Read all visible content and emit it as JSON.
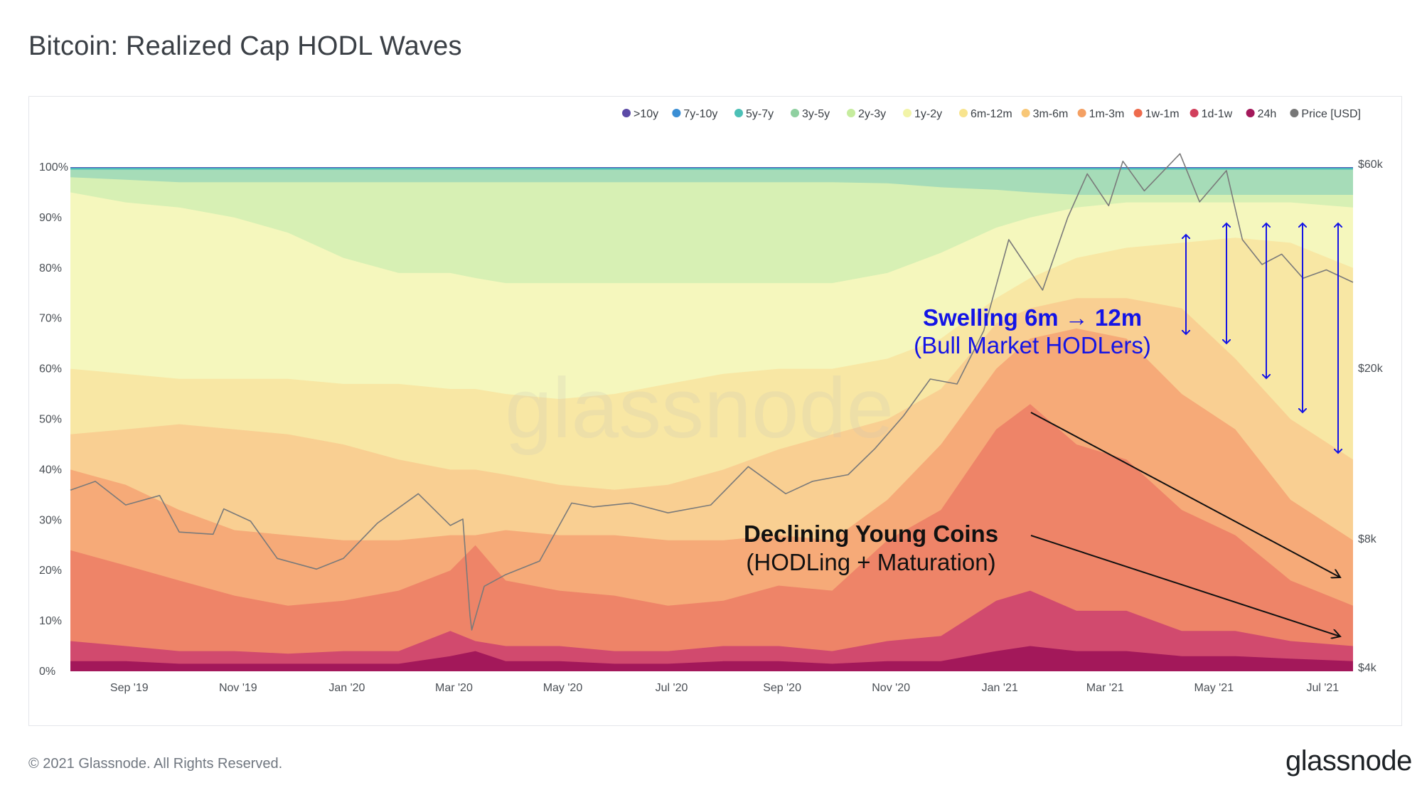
{
  "page": {
    "title": "Bitcoin: Realized Cap HODL Waves",
    "copyright": "© 2021 Glassnode. All Rights Reserved.",
    "brand": "glassnode",
    "watermark": "glassnode"
  },
  "chart_data": {
    "type": "area",
    "title": "Bitcoin: Realized Cap HODL Waves",
    "stacked": true,
    "x_labels": [
      "Sep '19",
      "Nov '19",
      "Jan '20",
      "Mar '20",
      "May '20",
      "Jul '20",
      "Sep '20",
      "Nov '20",
      "Jan '21",
      "Mar '21",
      "May '21",
      "Jul '21"
    ],
    "x_range": [
      "2019-08-01",
      "2021-07-20"
    ],
    "x_dates": [
      "2019-08-01",
      "2019-09-01",
      "2019-10-01",
      "2019-11-01",
      "2019-12-01",
      "2020-01-01",
      "2020-02-01",
      "2020-03-01",
      "2020-03-15",
      "2020-04-01",
      "2020-05-01",
      "2020-06-01",
      "2020-07-01",
      "2020-08-01",
      "2020-09-01",
      "2020-10-01",
      "2020-11-01",
      "2020-12-01",
      "2021-01-01",
      "2021-01-20",
      "2021-02-15",
      "2021-03-15",
      "2021-04-15",
      "2021-05-15",
      "2021-06-15",
      "2021-07-20"
    ],
    "y_left_ticks": [
      "0%",
      "10%",
      "20%",
      "30%",
      "40%",
      "50%",
      "60%",
      "70%",
      "80%",
      "90%",
      "100%"
    ],
    "y_left_range": [
      0,
      100
    ],
    "y_right_ticks": [
      {
        "label": "$4k",
        "value": 4000
      },
      {
        "label": "$8k",
        "value": 8000
      },
      {
        "label": "$20k",
        "value": 20000
      },
      {
        "label": "$60k",
        "value": 60000
      }
    ],
    "y_right_scale": "log",
    "legend_position": "top-right",
    "series": [
      {
        "name": "24h",
        "color": "#a3185a",
        "values": [
          2,
          2,
          1.5,
          1.5,
          1.5,
          1.5,
          1.5,
          3,
          4,
          2,
          2,
          1.5,
          1.5,
          2,
          2,
          1.5,
          2,
          2,
          4,
          5,
          4,
          4,
          3,
          3,
          2.5,
          2
        ]
      },
      {
        "name": "1d-1w",
        "color": "#d14a6e",
        "values": [
          6,
          5,
          4,
          4,
          3.5,
          4,
          4,
          8,
          6,
          5,
          5,
          4,
          4,
          5,
          5,
          4,
          6,
          7,
          14,
          16,
          12,
          12,
          8,
          8,
          6,
          5
        ]
      },
      {
        "name": "1w-1m",
        "color": "#ee8468",
        "values": [
          24,
          21,
          18,
          15,
          13,
          14,
          16,
          20,
          25,
          18,
          16,
          15,
          13,
          14,
          17,
          16,
          26,
          32,
          48,
          53,
          45,
          42,
          32,
          27,
          18,
          13
        ]
      },
      {
        "name": "1m-3m",
        "color": "#f6aa78",
        "values": [
          40,
          37,
          32,
          28,
          27,
          26,
          26,
          27,
          27,
          28,
          27,
          27,
          26,
          26,
          27,
          26,
          34,
          45,
          60,
          66,
          68,
          66,
          55,
          48,
          34,
          26
        ]
      },
      {
        "name": "3m-6m",
        "color": "#f9cf92",
        "values": [
          47,
          48,
          49,
          48,
          47,
          45,
          42,
          40,
          40,
          39,
          37,
          36,
          37,
          40,
          44,
          47,
          50,
          56,
          69,
          72,
          74,
          74,
          72,
          62,
          50,
          42
        ]
      },
      {
        "name": "6m-12m",
        "color": "#f8e7a4",
        "values": [
          60,
          59,
          58,
          58,
          58,
          57,
          57,
          56,
          56,
          55,
          54,
          55,
          57,
          59,
          60,
          60,
          62,
          66,
          74,
          78,
          82,
          84,
          85,
          86,
          85,
          80
        ]
      },
      {
        "name": "1y-2y",
        "color": "#f5f7bd",
        "values": [
          95,
          93,
          92,
          90,
          87,
          82,
          79,
          79,
          78,
          77,
          77,
          77,
          77,
          77,
          77,
          77,
          79,
          83,
          88,
          90,
          92,
          93,
          93,
          93,
          93,
          92
        ]
      },
      {
        "name": "2y-3y",
        "color": "#d7f0b4",
        "values": [
          98,
          97.5,
          97,
          97,
          97,
          97,
          97,
          97,
          97,
          97,
          97,
          97,
          97,
          97,
          97,
          97,
          96.8,
          96,
          95.5,
          95,
          94.5,
          94.5,
          94.5,
          94.5,
          94.5,
          94.5
        ]
      },
      {
        "name": "3y-5y",
        "color": "#a6dcb8",
        "values": [
          99.5,
          99.5,
          99.5,
          99.5,
          99.5,
          99.5,
          99.5,
          99.5,
          99.5,
          99.5,
          99.5,
          99.5,
          99.5,
          99.5,
          99.5,
          99.5,
          99.5,
          99.5,
          99.5,
          99.5,
          99.5,
          99.5,
          99.5,
          99.5,
          99.5,
          99.5
        ]
      },
      {
        "name": "5y-7y",
        "color": "#4cc0b6",
        "values": [
          99.8,
          99.8,
          99.8,
          99.8,
          99.8,
          99.8,
          99.8,
          99.8,
          99.8,
          99.8,
          99.8,
          99.8,
          99.8,
          99.8,
          99.8,
          99.8,
          99.8,
          99.8,
          99.8,
          99.8,
          99.8,
          99.8,
          99.8,
          99.8,
          99.8,
          99.8
        ]
      },
      {
        "name": "7y-10y",
        "color": "#3a8ed4",
        "values": [
          99.9,
          99.9,
          99.9,
          99.9,
          99.9,
          99.9,
          99.9,
          99.9,
          99.9,
          99.9,
          99.9,
          99.9,
          99.9,
          99.9,
          99.9,
          99.9,
          99.9,
          99.9,
          99.9,
          99.9,
          99.9,
          99.9,
          99.9,
          99.9,
          99.9,
          99.9
        ]
      },
      {
        "name": ">10y",
        "color": "#5b4aa6",
        "values": [
          100,
          100,
          100,
          100,
          100,
          100,
          100,
          100,
          100,
          100,
          100,
          100,
          100,
          100,
          100,
          100,
          100,
          100,
          100,
          100,
          100,
          100,
          100,
          100,
          100,
          100
        ]
      }
    ],
    "price": {
      "name": "Price [USD]",
      "color": "#7a7a7a",
      "dates": [
        "2019-08-01",
        "2019-08-15",
        "2019-09-01",
        "2019-09-20",
        "2019-10-01",
        "2019-10-20",
        "2019-10-26",
        "2019-11-10",
        "2019-11-25",
        "2019-12-17",
        "2020-01-01",
        "2020-01-20",
        "2020-02-12",
        "2020-03-01",
        "2020-03-08",
        "2020-03-12",
        "2020-03-13",
        "2020-03-20",
        "2020-04-01",
        "2020-04-20",
        "2020-05-08",
        "2020-05-20",
        "2020-06-10",
        "2020-07-01",
        "2020-07-25",
        "2020-08-15",
        "2020-09-05",
        "2020-09-20",
        "2020-10-10",
        "2020-10-25",
        "2020-11-10",
        "2020-11-25",
        "2020-12-10",
        "2020-12-25",
        "2021-01-08",
        "2021-01-27",
        "2021-02-10",
        "2021-02-21",
        "2021-03-05",
        "2021-03-13",
        "2021-03-25",
        "2021-04-14",
        "2021-04-25",
        "2021-05-10",
        "2021-05-19",
        "2021-05-30",
        "2021-06-10",
        "2021-06-22",
        "2021-07-05",
        "2021-07-20"
      ],
      "values": [
        10400,
        10900,
        9600,
        10100,
        8300,
        8200,
        9400,
        8800,
        7200,
        6800,
        7200,
        8700,
        10200,
        8600,
        8900,
        5300,
        4900,
        6200,
        6600,
        7100,
        9700,
        9500,
        9700,
        9200,
        9600,
        11800,
        10200,
        10900,
        11300,
        13000,
        15500,
        18900,
        18400,
        24500,
        40000,
        30500,
        45000,
        57000,
        48000,
        61000,
        52000,
        63500,
        49000,
        58000,
        40000,
        35000,
        37000,
        32500,
        34000,
        31800
      ]
    },
    "annotations": {
      "swelling_title": "Swelling 6m → 12m",
      "swelling_subtitle": "(Bull Market HODLers)",
      "declining_title": "Declining Young Coins",
      "declining_subtitle": "(HODLing + Maturation)"
    }
  },
  "legend": [
    {
      "label": ">10y",
      "color": "#5b4aa6"
    },
    {
      "label": "7y-10y",
      "color": "#3a8ed4"
    },
    {
      "label": "5y-7y",
      "color": "#4cc0b6"
    },
    {
      "label": "3y-5y",
      "color": "#8fd0a0"
    },
    {
      "label": "2y-3y",
      "color": "#c6ec9e"
    },
    {
      "label": "1y-2y",
      "color": "#f2f4a8"
    },
    {
      "label": "6m-12m",
      "color": "#f8e48e"
    },
    {
      "label": "3m-6m",
      "color": "#f8c777"
    },
    {
      "label": "1m-3m",
      "color": "#f4a063"
    },
    {
      "label": "1w-1m",
      "color": "#ee6b4d"
    },
    {
      "label": "1d-1w",
      "color": "#d13f5c"
    },
    {
      "label": "24h",
      "color": "#a3185a"
    },
    {
      "label": "Price [USD]",
      "color": "#777777"
    }
  ]
}
